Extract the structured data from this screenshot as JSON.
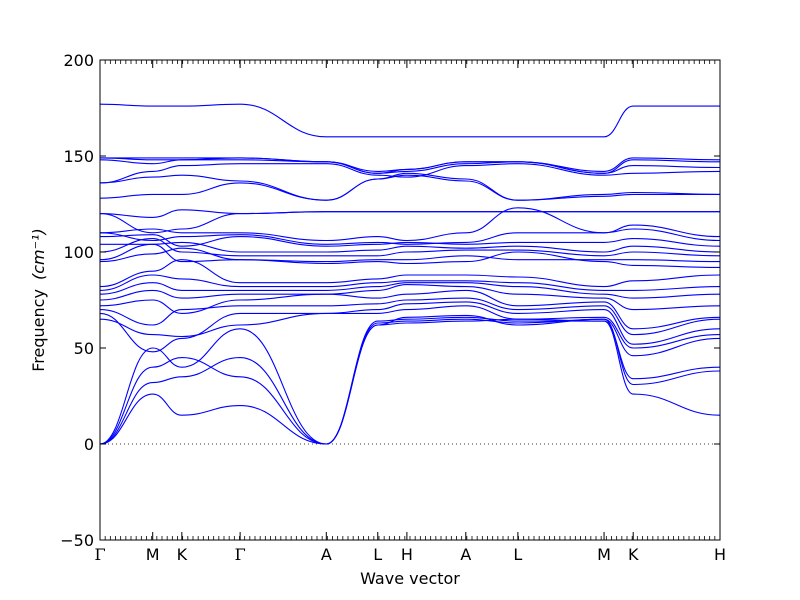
{
  "chart_data": {
    "type": "line",
    "xlabel": "Wave vector",
    "ylabel": "Frequency",
    "ylabel_unit": "(cm⁻¹)",
    "ylim": [
      -50,
      200
    ],
    "yticks": [
      -50,
      0,
      50,
      100,
      150,
      200
    ],
    "kpoints": [
      {
        "label": "Γ",
        "x": 0.0
      },
      {
        "label": "M",
        "x": 0.085
      },
      {
        "label": "K",
        "x": 0.132
      },
      {
        "label": "Γ",
        "x": 0.226
      },
      {
        "label": "A",
        "x": 0.365
      },
      {
        "label": "L",
        "x": 0.448
      },
      {
        "label": "H",
        "x": 0.495
      },
      {
        "label": "A",
        "x": 0.59
      },
      {
        "label": "L",
        "x": 0.674
      },
      {
        "label": "M",
        "x": 0.813
      },
      {
        "label": "K",
        "x": 0.86
      },
      {
        "label": "H",
        "x": 1.0
      }
    ],
    "zero_line": true,
    "line_color": "#0000ff",
    "series": [
      {
        "values": [
          0,
          26,
          15,
          20,
          0,
          62,
          63,
          64,
          65,
          64,
          26,
          15,
          65
        ]
      },
      {
        "values": [
          0,
          32,
          35,
          45,
          0,
          63,
          64,
          65,
          63,
          65,
          31,
          38,
          66
        ]
      },
      {
        "values": [
          0,
          40,
          45,
          35,
          0,
          64,
          65,
          66,
          64,
          64,
          34,
          40,
          70
        ]
      },
      {
        "values": [
          0,
          50,
          40,
          60,
          0,
          62,
          66,
          67,
          62,
          65,
          46,
          55,
          71
        ]
      },
      {
        "values": [
          65,
          57,
          56,
          62,
          68,
          68,
          70,
          72,
          65,
          66,
          50,
          57,
          72
        ]
      },
      {
        "values": [
          68,
          48,
          55,
          68,
          68,
          70,
          73,
          74,
          68,
          70,
          52,
          60,
          74
        ]
      },
      {
        "values": [
          70,
          62,
          70,
          72,
          72,
          73,
          75,
          76,
          70,
          72,
          57,
          65,
          75
        ]
      },
      {
        "values": [
          72,
          75,
          68,
          75,
          78,
          76,
          78,
          80,
          72,
          74,
          60,
          66,
          80
        ]
      },
      {
        "values": [
          75,
          80,
          76,
          78,
          78,
          80,
          83,
          82,
          78,
          76,
          70,
          72,
          83
        ]
      },
      {
        "values": [
          78,
          84,
          80,
          80,
          80,
          82,
          84,
          84,
          82,
          78,
          76,
          78,
          84
        ]
      },
      {
        "values": [
          80,
          88,
          86,
          82,
          82,
          84,
          85,
          85,
          84,
          80,
          80,
          82,
          84
        ]
      },
      {
        "values": [
          82,
          90,
          96,
          84,
          84,
          86,
          88,
          88,
          87,
          82,
          85,
          88,
          85
        ]
      },
      {
        "values": [
          95,
          99,
          102,
          96,
          94,
          95,
          94,
          95,
          100,
          95,
          93,
          92,
          95
        ]
      },
      {
        "values": [
          96,
          104,
          95,
          96,
          95,
          96,
          96,
          98,
          96,
          96,
          96,
          95,
          97
        ]
      },
      {
        "values": [
          100,
          107,
          100,
          98,
          98,
          98,
          100,
          101,
          101,
          98,
          100,
          98,
          99
        ]
      },
      {
        "values": [
          104,
          104,
          105,
          100,
          100,
          101,
          103,
          102,
          103,
          100,
          103,
          100,
          100
        ]
      },
      {
        "values": [
          108,
          109,
          103,
          108,
          103,
          104,
          105,
          104,
          105,
          105,
          107,
          103,
          103
        ]
      },
      {
        "values": [
          110,
          106,
          108,
          109,
          104,
          105,
          104,
          105,
          110,
          110,
          112,
          106,
          104
        ]
      },
      {
        "values": [
          110,
          112,
          110,
          110,
          106,
          108,
          106,
          110,
          123,
          110,
          114,
          108,
          106
        ]
      },
      {
        "values": [
          120,
          110,
          112,
          120,
          121,
          121,
          121,
          121,
          121,
          121,
          121,
          121,
          121
        ]
      },
      {
        "values": [
          120,
          118,
          122,
          120,
          121,
          121,
          121,
          121,
          121,
          121,
          121,
          121,
          121
        ]
      },
      {
        "values": [
          128,
          130,
          130,
          136,
          127,
          138,
          140,
          137,
          127,
          129,
          130,
          130,
          136
        ]
      },
      {
        "values": [
          136,
          139,
          140,
          137,
          127,
          138,
          141,
          138,
          127,
          130,
          131,
          130,
          137
        ]
      },
      {
        "values": [
          136,
          142,
          145,
          146,
          146,
          140,
          139,
          145,
          146,
          140,
          141,
          142,
          142
        ]
      },
      {
        "values": [
          148,
          146,
          148,
          148,
          147,
          141,
          142,
          146,
          147,
          141,
          145,
          144,
          142
        ]
      },
      {
        "values": [
          149,
          148,
          148,
          149,
          147,
          141,
          143,
          147,
          147,
          141,
          148,
          147,
          143
        ]
      },
      {
        "values": [
          149,
          149,
          149,
          149,
          147,
          142,
          143,
          147,
          147,
          142,
          149,
          148,
          144
        ]
      },
      {
        "values": [
          177,
          176,
          176,
          177,
          160,
          160,
          160,
          160,
          160,
          160,
          176,
          176,
          160
        ]
      }
    ]
  }
}
